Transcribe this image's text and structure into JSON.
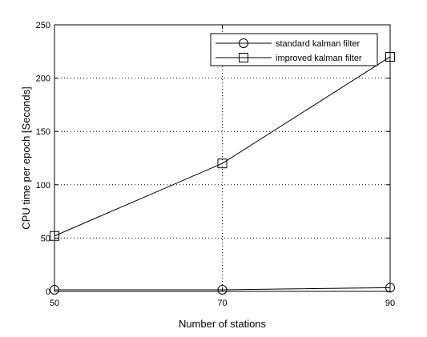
{
  "chart_data": {
    "type": "line",
    "xlabel": "Number of stations",
    "ylabel": "CPU time per epoch [Seconds]",
    "xlim": [
      50,
      90
    ],
    "ylim": [
      0,
      250
    ],
    "x_ticks": [
      50,
      70,
      90
    ],
    "y_ticks": [
      0,
      50,
      100,
      150,
      200,
      250
    ],
    "grid": true,
    "legend_position": "top-right",
    "x": [
      50,
      70,
      90
    ],
    "series": [
      {
        "name": "standard kalman filter",
        "marker": "circle",
        "values": [
          1.5,
          1.5,
          3.5
        ]
      },
      {
        "name": "improved kalman filter",
        "marker": "square",
        "values": [
          52,
          120,
          220
        ]
      }
    ]
  }
}
